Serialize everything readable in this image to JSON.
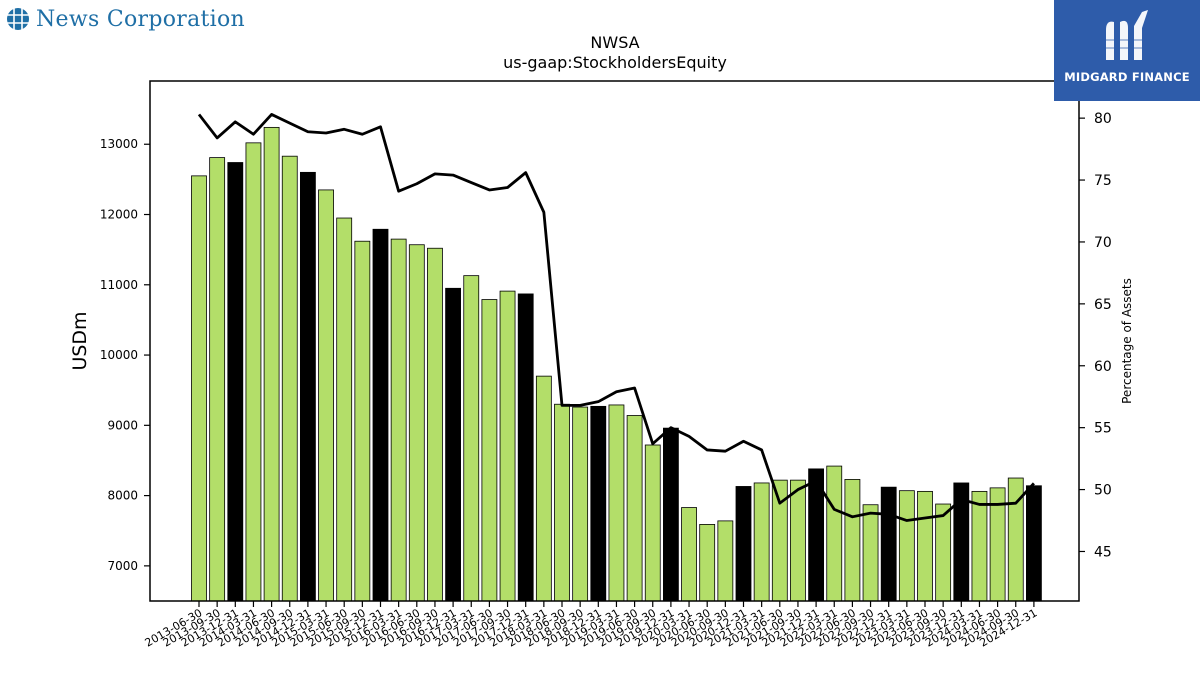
{
  "header": {
    "company_name": "News Corporation",
    "logo_icon": "globe-grid-icon",
    "logo_color": "#1f6fa6"
  },
  "watermark": {
    "text": "MIDGARD FINANCE",
    "icon": "midgard-m-icon",
    "background": "#2e5caa"
  },
  "chart_data": {
    "type": "bar",
    "title": "NWSA",
    "subtitle": "us-gaap:StockholdersEquity",
    "ylabel": "USDm",
    "y2label": "Percentage of Assets",
    "ylim": [
      6500,
      13900
    ],
    "y2lim": [
      41,
      83
    ],
    "yticks": [
      7000,
      8000,
      9000,
      10000,
      11000,
      12000,
      13000
    ],
    "y2ticks": [
      45,
      50,
      55,
      60,
      65,
      70,
      75,
      80
    ],
    "grid": false,
    "colors": {
      "quarter": "#b3de69",
      "fiscal_year": "#000000",
      "line": "#000000"
    },
    "categories": [
      "2013-06-30",
      "2013-09-30",
      "2013-12-31",
      "2014-03-31",
      "2014-06-30",
      "2014-09-30",
      "2014-12-31",
      "2015-03-31",
      "2015-06-30",
      "2015-09-30",
      "2015-12-31",
      "2016-03-31",
      "2016-06-30",
      "2016-09-30",
      "2016-12-31",
      "2017-03-31",
      "2017-06-30",
      "2017-09-30",
      "2017-12-31",
      "2018-03-31",
      "2018-06-30",
      "2018-09-30",
      "2018-12-31",
      "2019-03-31",
      "2019-06-30",
      "2019-09-30",
      "2019-12-31",
      "2020-03-31",
      "2020-06-30",
      "2020-09-30",
      "2020-12-31",
      "2021-03-31",
      "2021-06-30",
      "2021-09-30",
      "2021-12-31",
      "2022-03-31",
      "2022-06-30",
      "2022-09-30",
      "2022-12-31",
      "2023-03-31",
      "2023-06-30",
      "2023-09-30",
      "2023-12-31",
      "2024-03-31",
      "2024-06-30",
      "2024-09-30",
      "2024-12-31"
    ],
    "series": [
      {
        "type": "bar",
        "values": [
          12550,
          12810,
          12740,
          13020,
          13240,
          12830,
          12600,
          12350,
          11950,
          11620,
          11790,
          11650,
          11570,
          11520,
          10950,
          11130,
          10790,
          10910,
          10870,
          9700,
          9300,
          9260,
          9270,
          9290,
          9140,
          8720,
          8960,
          7830,
          7590,
          7640,
          8130,
          8180,
          8220,
          8220,
          8380,
          8420,
          8230,
          7870,
          8120,
          8070,
          8060,
          7880,
          8180,
          8060,
          8110,
          8250,
          8140
        ],
        "fiscal_year_flags": [
          0,
          0,
          1,
          0,
          0,
          0,
          1,
          0,
          0,
          0,
          1,
          0,
          0,
          0,
          1,
          0,
          0,
          0,
          1,
          0,
          0,
          0,
          1,
          0,
          0,
          0,
          1,
          0,
          0,
          0,
          1,
          0,
          0,
          0,
          1,
          0,
          0,
          0,
          1,
          0,
          0,
          0,
          1,
          0,
          0,
          0,
          1
        ]
      },
      {
        "type": "line",
        "axis": "right",
        "values": [
          80.3,
          78.4,
          79.7,
          78.7,
          80.3,
          79.6,
          78.9,
          78.8,
          79.1,
          78.7,
          79.3,
          74.1,
          74.7,
          75.5,
          75.4,
          74.8,
          74.2,
          74.4,
          75.6,
          72.4,
          56.8,
          56.8,
          57.1,
          57.9,
          58.2,
          53.7,
          55.0,
          54.3,
          53.2,
          53.1,
          53.9,
          53.2,
          48.9,
          50.0,
          50.7,
          48.4,
          47.8,
          48.1,
          48.0,
          47.5,
          47.7,
          47.9,
          49.2,
          48.8,
          48.8,
          48.9,
          50.5
        ]
      }
    ]
  }
}
